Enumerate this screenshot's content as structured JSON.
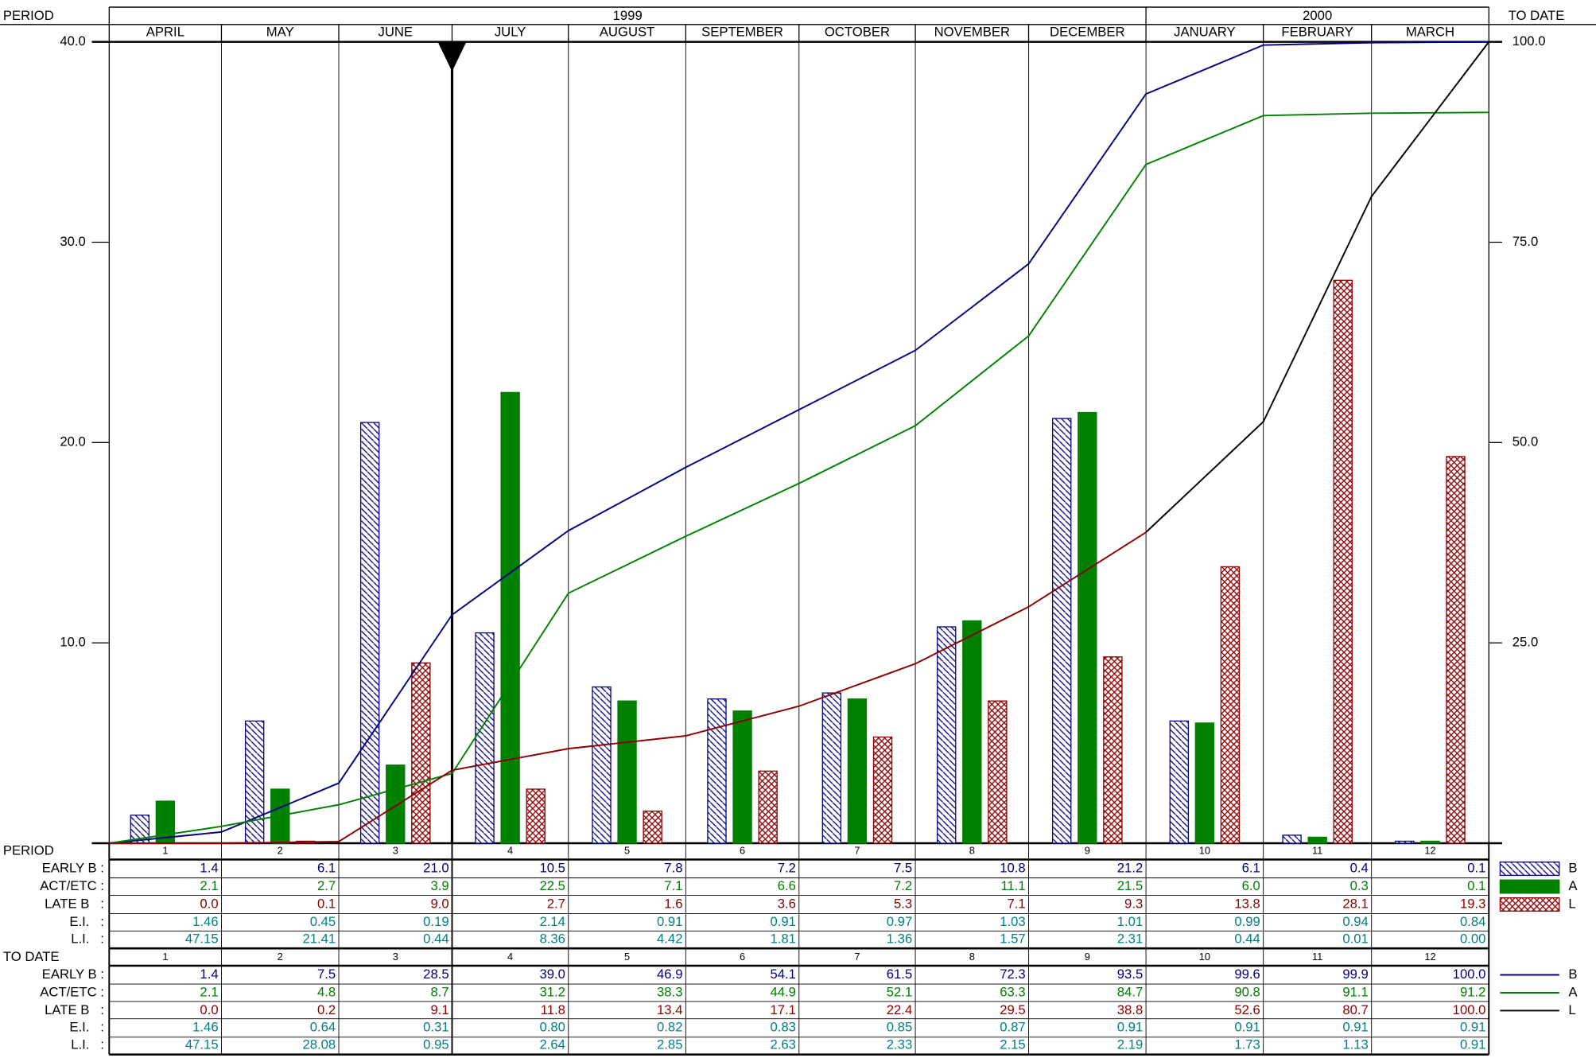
{
  "chart_data": {
    "type": "combo",
    "period_label": "PERIOD",
    "to_date_label": "TO DATE",
    "years": [
      "1999",
      "2000"
    ],
    "categories": [
      "APRIL",
      "MAY",
      "JUNE",
      "JULY",
      "AUGUST",
      "SEPTEMBER",
      "OCTOBER",
      "NOVEMBER",
      "DECEMBER",
      "JANUARY",
      "FEBRUARY",
      "MARCH"
    ],
    "ylim": [
      0,
      40
    ],
    "yticks": [
      {
        "value": 10,
        "label": "10.0"
      },
      {
        "value": 20,
        "label": "20.0"
      },
      {
        "value": 30,
        "label": "30.0"
      },
      {
        "value": 40,
        "label": "40.0"
      }
    ],
    "y2lim": [
      0,
      100
    ],
    "y2ticks": [
      {
        "value": 25,
        "label": "25.0"
      },
      {
        "value": 50,
        "label": "50.0"
      },
      {
        "value": 75,
        "label": "75.0"
      },
      {
        "value": 100,
        "label": "100.0"
      }
    ],
    "series": [
      {
        "name": "B",
        "type": "bar",
        "pattern": "hatch",
        "color": "#000080",
        "values": [
          1.4,
          6.1,
          21.0,
          10.5,
          7.8,
          7.2,
          7.5,
          10.8,
          21.2,
          6.1,
          0.4,
          0.1
        ],
        "value_labels": [
          "1.4",
          "6.1",
          "21.0",
          "10.5",
          "7.8",
          "7.2",
          "7.5",
          "10.8",
          "21.2",
          "6.1",
          "0.4",
          "0.1"
        ]
      },
      {
        "name": "A",
        "type": "bar",
        "pattern": "solid",
        "color": "#008000",
        "values": [
          2.1,
          2.7,
          3.9,
          22.5,
          7.1,
          6.6,
          7.2,
          11.1,
          21.5,
          6.0,
          0.3,
          0.1
        ],
        "value_labels": [
          "2.1",
          "2.7",
          "3.9",
          "22.5",
          "7.1",
          "6.6",
          "7.2",
          "11.1",
          "21.5",
          "6.0",
          "0.3",
          "0.1"
        ]
      },
      {
        "name": "L",
        "type": "bar",
        "pattern": "crosshatch",
        "color": "#8b0000",
        "values": [
          0.0,
          0.1,
          9.0,
          2.7,
          1.6,
          3.6,
          5.3,
          7.1,
          9.3,
          13.8,
          28.1,
          19.3
        ],
        "value_labels": [
          "0.0",
          "0.1",
          "9.0",
          "2.7",
          "1.6",
          "3.6",
          "5.3",
          "7.1",
          "9.3",
          "13.8",
          "28.1",
          "19.3"
        ]
      },
      {
        "name": "B",
        "type": "line",
        "axis": "y2",
        "color": "#000080",
        "values": [
          1.4,
          7.5,
          28.5,
          39.0,
          46.9,
          54.1,
          61.5,
          72.3,
          93.5,
          99.6,
          99.9,
          100.0
        ],
        "value_labels": [
          "1.4",
          "7.5",
          "28.5",
          "39.0",
          "46.9",
          "54.1",
          "61.5",
          "72.3",
          "93.5",
          "99.6",
          "99.9",
          "100.0"
        ]
      },
      {
        "name": "A",
        "type": "line",
        "axis": "y2",
        "color": "#008000",
        "values": [
          2.1,
          4.8,
          8.7,
          31.2,
          38.3,
          44.9,
          52.1,
          63.3,
          84.7,
          90.8,
          91.1,
          91.2
        ],
        "value_labels": [
          "2.1",
          "4.8",
          "8.7",
          "31.2",
          "38.3",
          "44.9",
          "52.1",
          "63.3",
          "84.7",
          "90.8",
          "91.1",
          "91.2"
        ]
      },
      {
        "name": "L",
        "type": "line",
        "axis": "y2",
        "color": "#000000",
        "leading_color": "#8b0000",
        "leading_points": 9,
        "values": [
          0.0,
          0.2,
          9.1,
          11.8,
          13.4,
          17.1,
          22.4,
          29.5,
          38.8,
          52.6,
          80.7,
          100.0
        ],
        "value_labels": [
          "0.0",
          "0.2",
          "9.1",
          "11.8",
          "13.4",
          "17.1",
          "22.4",
          "29.5",
          "38.8",
          "52.6",
          "80.7",
          "100.0"
        ]
      }
    ],
    "table": {
      "period_numbers": [
        1,
        2,
        3,
        4,
        5,
        6,
        7,
        8,
        9,
        10,
        11,
        12
      ],
      "row_labels": [
        "EARLY B :",
        "ACT/ETC :",
        "LATE B   :",
        "E.I.   :",
        "L.I.   :"
      ],
      "index_color": "#008080",
      "period_ei": [
        "1.46",
        "0.45",
        "0.19",
        "2.14",
        "0.91",
        "0.91",
        "0.97",
        "1.03",
        "1.01",
        "0.99",
        "0.94",
        "0.84"
      ],
      "period_li": [
        "47.15",
        "21.41",
        "0.44",
        "8.36",
        "4.42",
        "1.81",
        "1.36",
        "1.57",
        "2.31",
        "0.44",
        "0.01",
        "0.00"
      ],
      "cumulative_ei": [
        "1.46",
        "0.64",
        "0.31",
        "0.80",
        "0.82",
        "0.83",
        "0.85",
        "0.87",
        "0.91",
        "0.91",
        "0.91",
        "0.91"
      ],
      "cumulative_li": [
        "47.15",
        "28.08",
        "0.95",
        "2.64",
        "2.85",
        "2.63",
        "2.33",
        "2.15",
        "2.19",
        "1.73",
        "1.13",
        "0.91"
      ]
    }
  }
}
